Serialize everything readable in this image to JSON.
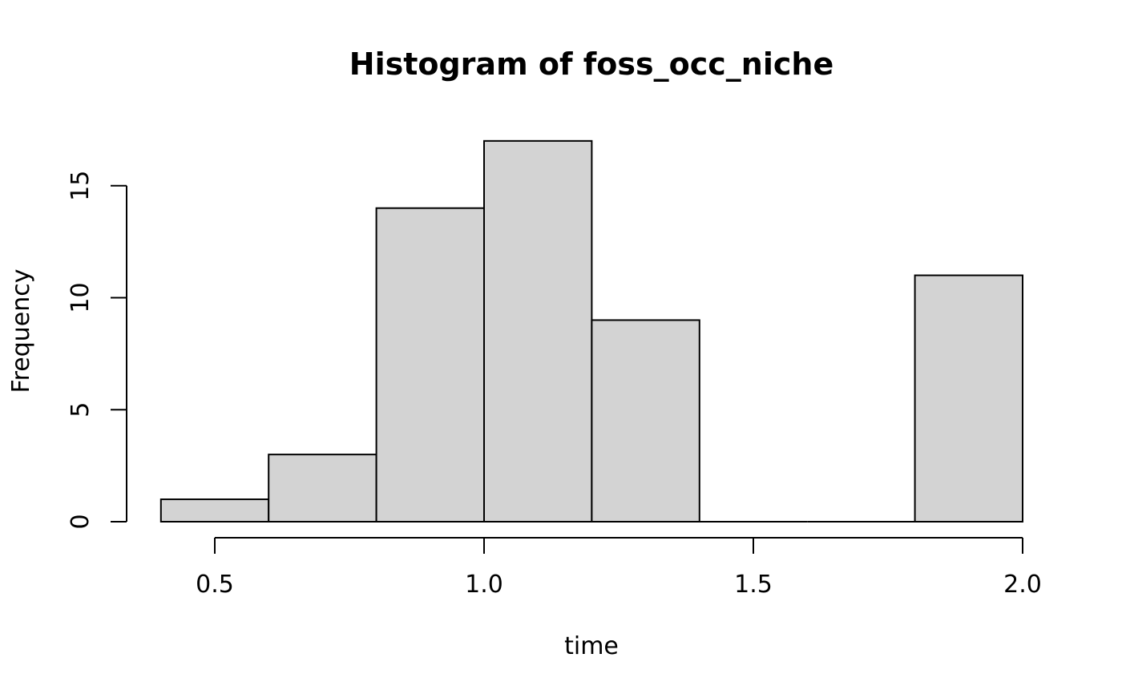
{
  "chart_data": {
    "type": "bar",
    "subtype": "histogram",
    "title": "Histogram of foss_occ_niche",
    "xlabel": "time",
    "ylabel": "Frequency",
    "bins": [
      {
        "start": 0.4,
        "end": 0.6,
        "count": 1
      },
      {
        "start": 0.6,
        "end": 0.8,
        "count": 3
      },
      {
        "start": 0.8,
        "end": 1.0,
        "count": 14
      },
      {
        "start": 1.0,
        "end": 1.2,
        "count": 17
      },
      {
        "start": 1.2,
        "end": 1.4,
        "count": 9
      },
      {
        "start": 1.4,
        "end": 1.6,
        "count": 0
      },
      {
        "start": 1.6,
        "end": 1.8,
        "count": 0
      },
      {
        "start": 1.8,
        "end": 2.0,
        "count": 11
      }
    ],
    "x_ticks": [
      "0.5",
      "1.0",
      "1.5",
      "2.0"
    ],
    "x_tick_values": [
      0.5,
      1.0,
      1.5,
      2.0
    ],
    "y_ticks": [
      "0",
      "5",
      "10",
      "15"
    ],
    "y_tick_values": [
      0,
      5,
      10,
      15
    ],
    "xlim": [
      0.4,
      2.0
    ],
    "ylim": [
      0,
      17
    ],
    "bar_fill": "#d3d3d3",
    "bar_stroke": "#000000",
    "grid": false,
    "legend": "none"
  }
}
